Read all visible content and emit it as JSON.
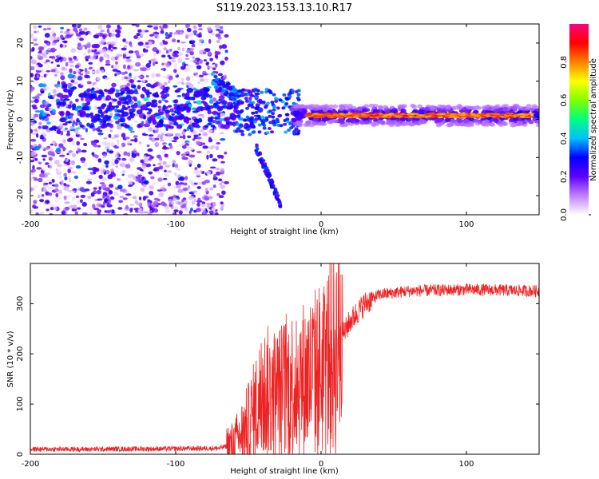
{
  "figure": {
    "title": "S119.2023.153.13.10.R17"
  },
  "chart_data": [
    {
      "type": "heatmap",
      "name": "spectrogram",
      "xlabel": "Height of straight line (km)",
      "ylabel": "Frequency (Hz)",
      "xlim": [
        -200,
        150
      ],
      "ylim": [
        -25,
        25
      ],
      "xticks": [
        -200,
        -100,
        0,
        100
      ],
      "yticks": [
        -20,
        -10,
        0,
        10,
        20
      ],
      "colorbar": {
        "label": "Normalized spectral amplitude",
        "range": [
          0.0,
          1.0
        ],
        "ticks": [
          0.0,
          0.2,
          0.4,
          0.6,
          0.8
        ],
        "tick_labels": [
          "0.0",
          "0.2",
          "0.4",
          "0.6",
          "0.8"
        ],
        "colors": [
          "#ffffff",
          "#c080ff",
          "#6000ff",
          "#0000ff",
          "#00c0ff",
          "#00ff80",
          "#80ff00",
          "#ffff00",
          "#ff8000",
          "#ff0000",
          "#ff0080"
        ]
      },
      "features": {
        "noise_region_x": [
          -200,
          -75
        ],
        "noise_amplitude": 0.25,
        "main_band": {
          "x": [
            -20,
            150
          ],
          "freq": 1.0,
          "width": 2.0,
          "peak_amplitude": 0.85
        },
        "descending_branch": {
          "x_start": -45,
          "f_start": -7,
          "x_end": -28,
          "f_end": -22
        },
        "upper_branch": {
          "x_start": -75,
          "f_start": 11,
          "x_end": -55,
          "f_end": 5
        }
      }
    },
    {
      "type": "line",
      "name": "snr",
      "xlabel": "Height of straight line (km)",
      "ylabel": "SNR (10 * v/v)",
      "xlim": [
        -200,
        150
      ],
      "ylim": [
        0,
        380
      ],
      "xticks": [
        -200,
        -100,
        0,
        100
      ],
      "yticks": [
        0,
        100,
        200,
        300
      ],
      "color": "#ee2222",
      "series_profile": [
        {
          "x": -200,
          "y": 10
        },
        {
          "x": -160,
          "y": 10
        },
        {
          "x": -100,
          "y": 11
        },
        {
          "x": -70,
          "y": 12
        },
        {
          "x": -60,
          "y": 20
        },
        {
          "x": -50,
          "y": 60
        },
        {
          "x": -40,
          "y": 120
        },
        {
          "x": -30,
          "y": 120
        },
        {
          "x": -20,
          "y": 140
        },
        {
          "x": -10,
          "y": 150
        },
        {
          "x": 0,
          "y": 170
        },
        {
          "x": 10,
          "y": 210
        },
        {
          "x": 20,
          "y": 265
        },
        {
          "x": 30,
          "y": 300
        },
        {
          "x": 40,
          "y": 318
        },
        {
          "x": 60,
          "y": 325
        },
        {
          "x": 100,
          "y": 328
        },
        {
          "x": 150,
          "y": 325
        }
      ]
    }
  ]
}
